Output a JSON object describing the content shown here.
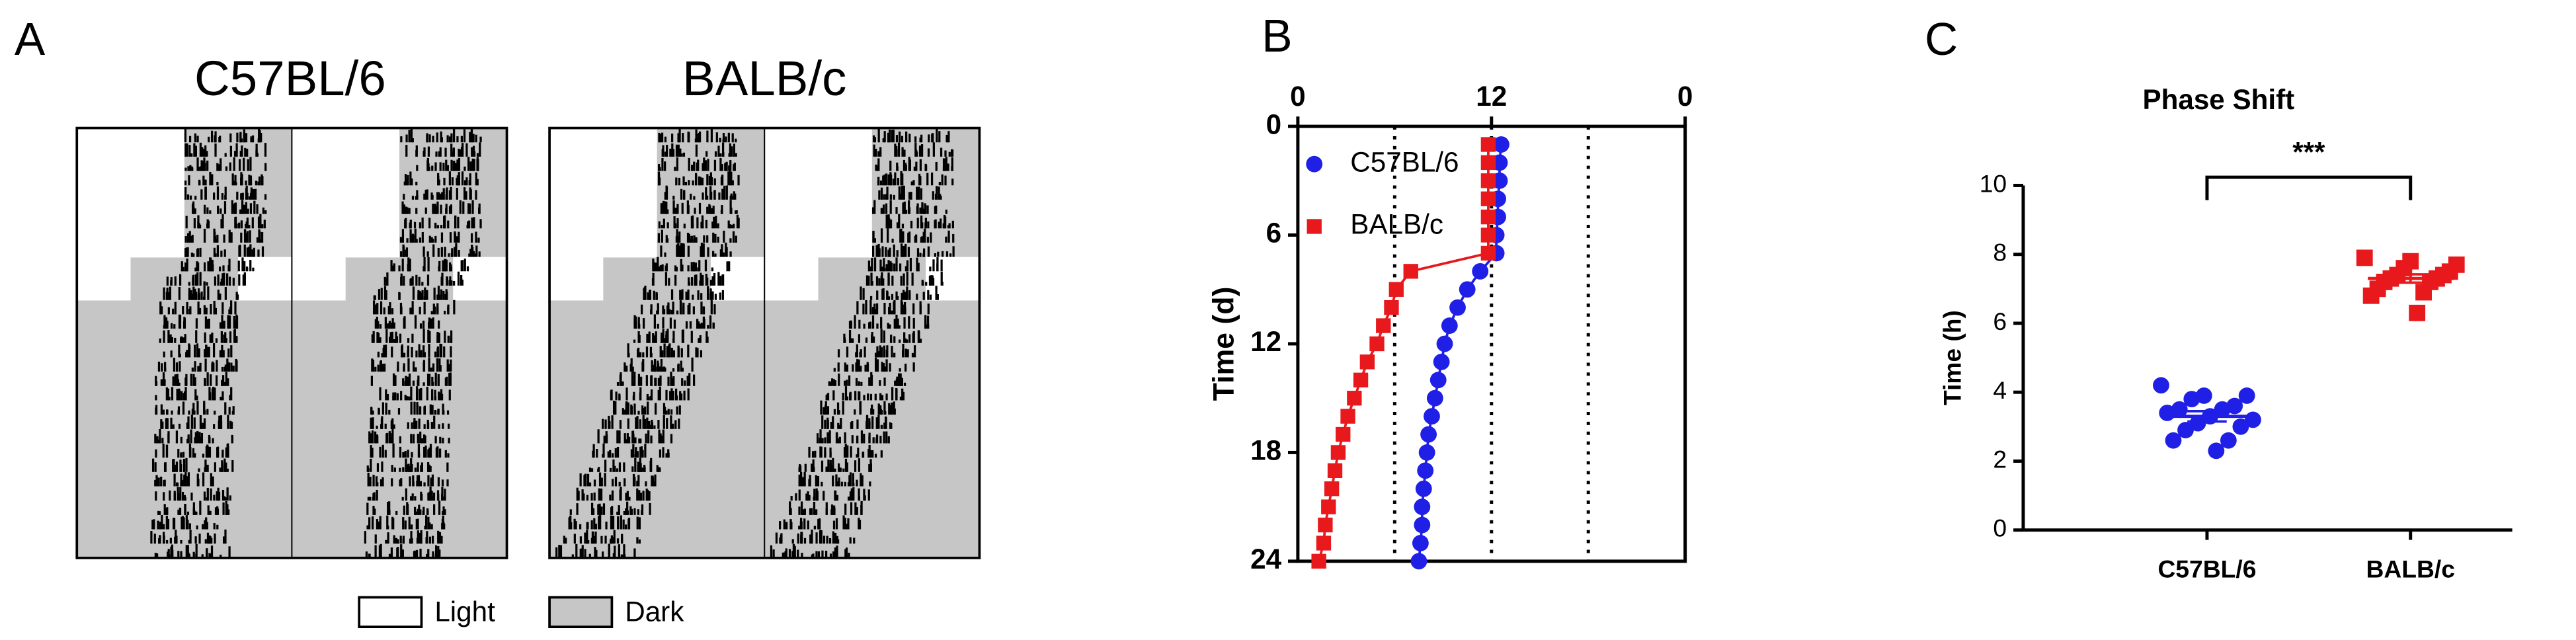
{
  "figure": {
    "panels": [
      "A",
      "B",
      "C"
    ]
  },
  "actogram": {
    "titles": [
      "C57BL/6",
      "BALB/c"
    ],
    "legend": [
      "Light",
      "Dark"
    ]
  },
  "chart_data": [
    {
      "type": "line",
      "ylabel": "Time (d)",
      "x_axis_position": "top",
      "xlim": [
        0,
        24
      ],
      "xticks": [
        0,
        12,
        {
          "value": 24,
          "label": "0"
        }
      ],
      "ylim": [
        0,
        24
      ],
      "yticks": [
        0,
        6,
        12,
        18,
        24
      ],
      "y_inverted": true,
      "reference_lines": [
        6,
        12,
        18
      ],
      "legend": "upper left",
      "series": [
        {
          "name": "C57BL/6",
          "color": "#1f1fe6",
          "marker": "circle",
          "x": [
            12.6,
            12.5,
            12.5,
            12.4,
            12.4,
            12.3,
            12.3,
            11.3,
            10.5,
            9.9,
            9.4,
            9.1,
            8.9,
            8.7,
            8.5,
            8.3,
            8.1,
            8.0,
            7.9,
            7.8,
            7.7,
            7.7,
            7.6,
            7.5
          ],
          "y": [
            1,
            2,
            3,
            4,
            5,
            6,
            7,
            8,
            9,
            10,
            11,
            12,
            13,
            14,
            15,
            16,
            17,
            18,
            19,
            20,
            21,
            22,
            23,
            24
          ]
        },
        {
          "name": "BALB/c",
          "color": "#e8191c",
          "marker": "square",
          "x": [
            11.8,
            11.8,
            11.8,
            11.8,
            11.8,
            11.8,
            11.8,
            7.0,
            6.1,
            5.8,
            5.3,
            4.9,
            4.3,
            3.9,
            3.5,
            3.1,
            2.8,
            2.5,
            2.3,
            2.1,
            1.9,
            1.7,
            1.6,
            1.3
          ],
          "y": [
            1,
            2,
            3,
            4,
            5,
            6,
            7,
            8,
            9,
            10,
            11,
            12,
            13,
            14,
            15,
            16,
            17,
            18,
            19,
            20,
            21,
            22,
            23,
            24
          ]
        }
      ]
    },
    {
      "type": "dot",
      "title": "Phase Shift",
      "ylabel": "Time (h)",
      "categories": [
        "C57BL/6",
        "BALB/c"
      ],
      "ylim": [
        0,
        10
      ],
      "yticks": [
        0,
        2,
        4,
        6,
        8,
        10
      ],
      "annotation": "***",
      "groups": [
        {
          "color": "#1f1fe6",
          "marker": "circle",
          "values": [
            4.2,
            3.9,
            3.9,
            3.8,
            3.6,
            3.5,
            3.5,
            3.4,
            3.3,
            3.2,
            3.1,
            3.0,
            2.9,
            2.6,
            2.6,
            2.3
          ],
          "mean": 3.3,
          "error": 0.15
        },
        {
          "color": "#e8191c",
          "marker": "square",
          "values": [
            7.9,
            7.8,
            7.7,
            7.6,
            7.5,
            7.4,
            7.4,
            7.3,
            7.3,
            7.2,
            7.2,
            7.0,
            6.9,
            6.8,
            6.3
          ],
          "mean": 7.3,
          "error": 0.12
        }
      ]
    }
  ]
}
